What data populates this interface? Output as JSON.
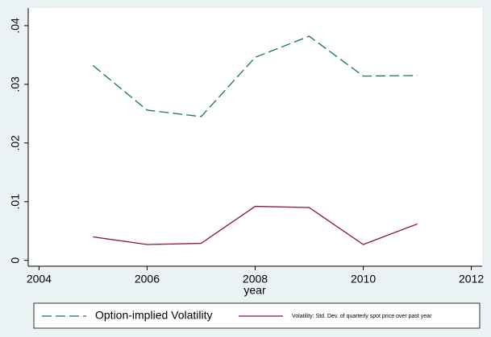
{
  "chart_data": {
    "type": "line",
    "x_label": "year",
    "xlim": [
      2003.8,
      2012.2
    ],
    "xticks": [
      2004,
      2006,
      2008,
      2010,
      2012
    ],
    "ylim": [
      -0.001,
      0.043
    ],
    "yticks": [
      0,
      {
        "value": 0.01,
        "label": ".01"
      },
      {
        "value": 0.02,
        "label": ".02"
      },
      {
        "value": 0.03,
        "label": ".03"
      },
      {
        "value": 0.04,
        "label": ".04"
      }
    ],
    "x": [
      2005,
      2006,
      2007,
      2008,
      2009,
      2010,
      2011
    ],
    "series": [
      {
        "name": "Option-implied Volatility",
        "color": "#1a6e6e",
        "dashed": true,
        "values": [
          0.0332,
          0.0256,
          0.0245,
          0.0346,
          0.0382,
          0.0314,
          0.0315
        ]
      },
      {
        "name": "Volatility: Std. Dev. of quarterly spot price over past year",
        "color": "#8b1a2a",
        "dashed": false,
        "values": [
          0.004,
          0.0027,
          0.0029,
          0.0092,
          0.009,
          0.0027,
          0.0062
        ]
      }
    ],
    "legend": "bottom"
  }
}
